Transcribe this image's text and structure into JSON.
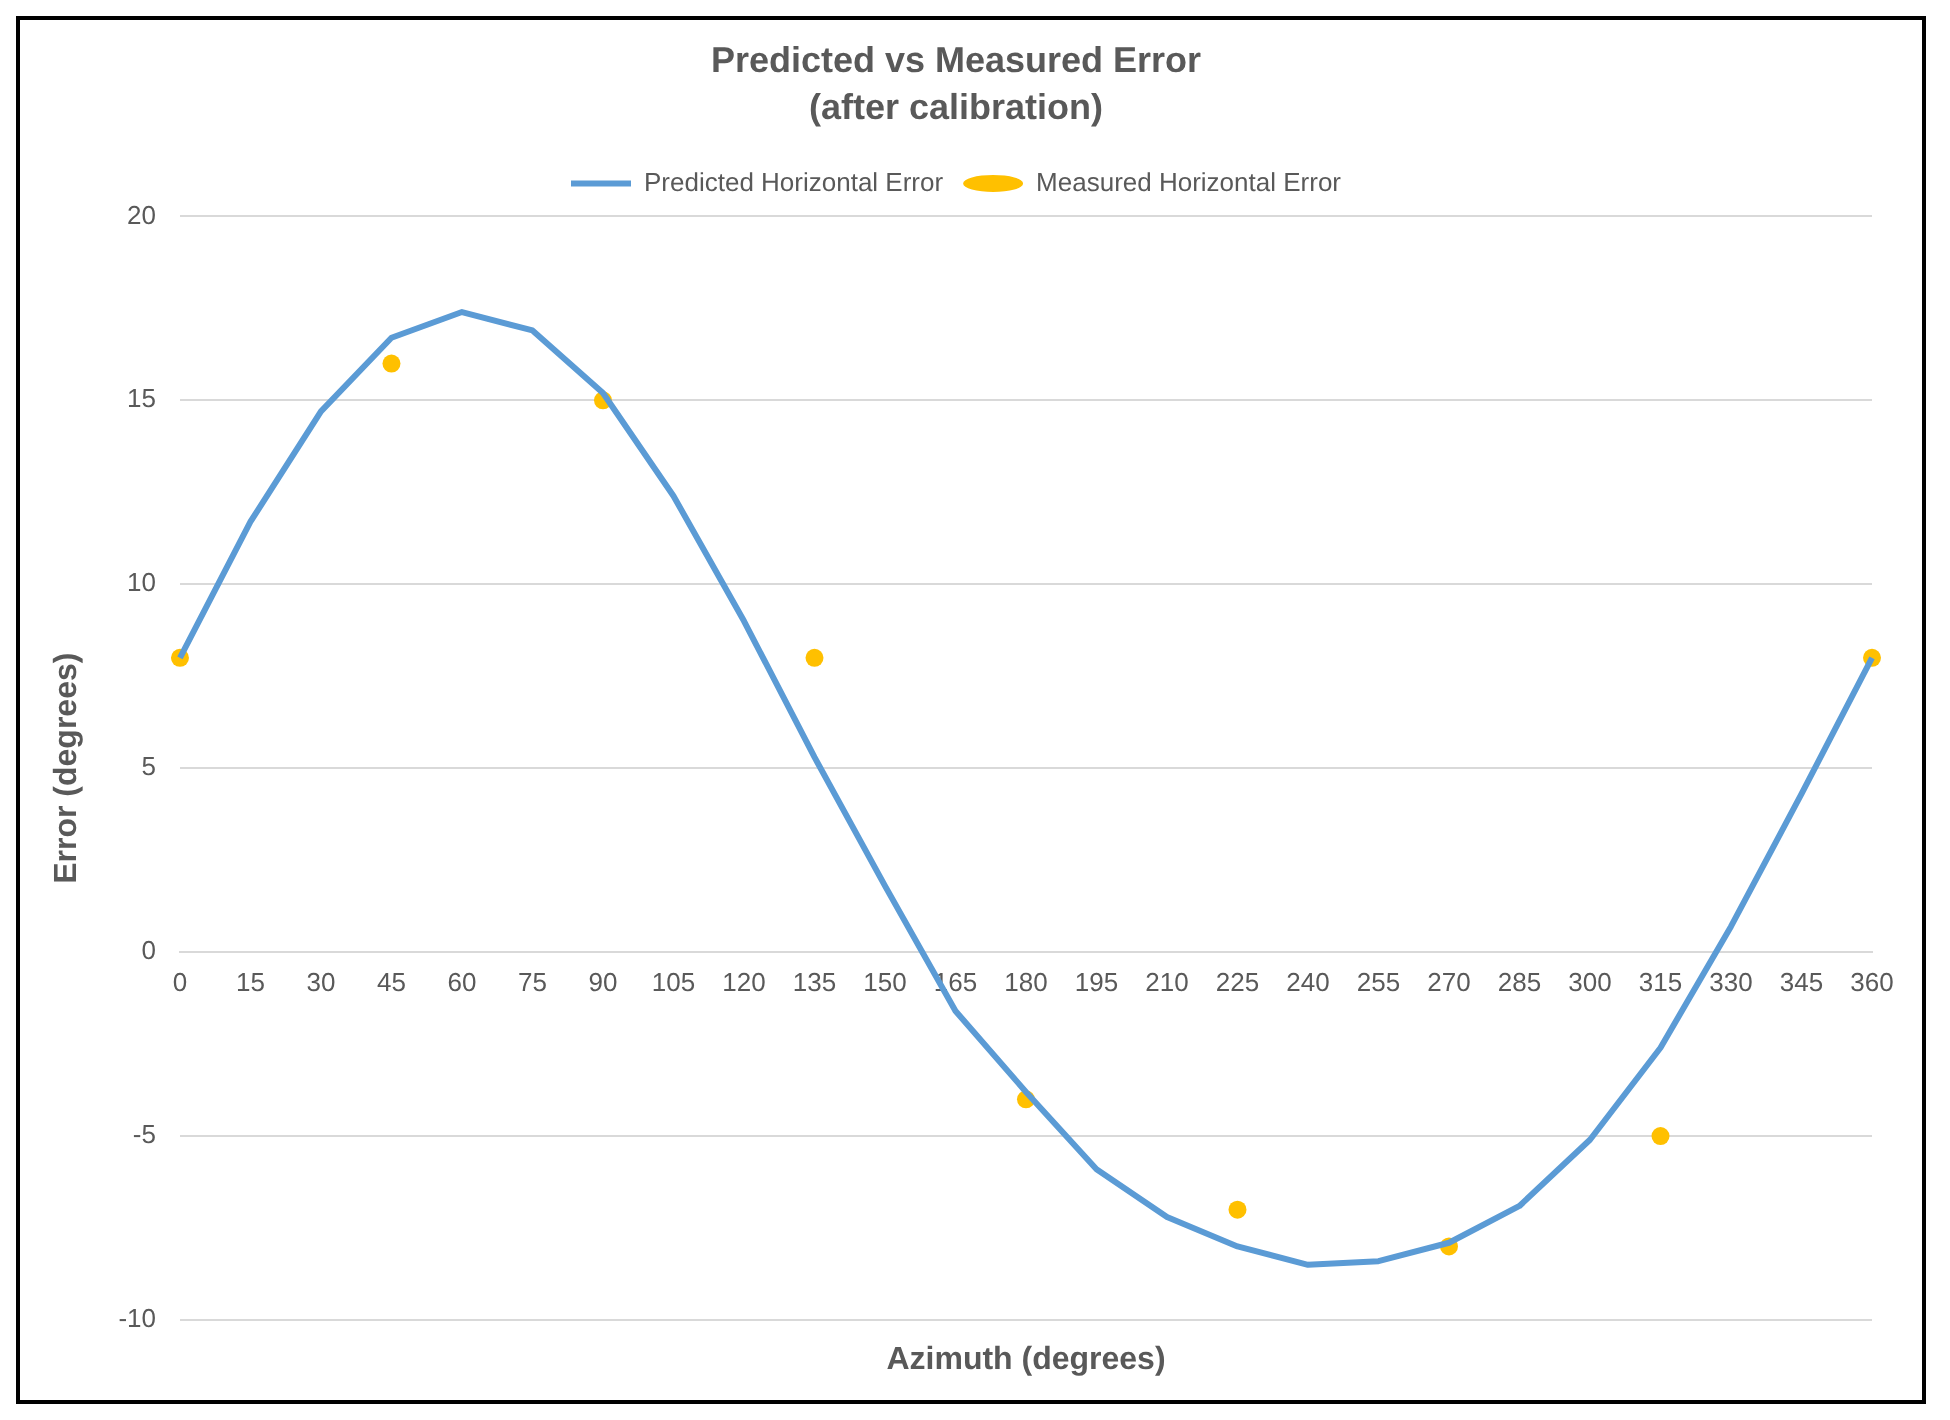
{
  "chart_data": {
    "type": "line",
    "title": "Predicted vs Measured Error",
    "subtitle": "(after calibration)",
    "xlabel": "Azimuth (degrees)",
    "ylabel": "Error (degrees)",
    "categories": [
      "0",
      "15",
      "30",
      "45",
      "60",
      "75",
      "90",
      "105",
      "120",
      "135",
      "150",
      "165",
      "180",
      "195",
      "210",
      "225",
      "240",
      "255",
      "270",
      "285",
      "300",
      "315",
      "330",
      "345",
      "360"
    ],
    "series": [
      {
        "name": "Predicted Horizontal Error",
        "type": "line",
        "color": "#5b9bd5",
        "marker": "none",
        "values": [
          8.0,
          11.7,
          14.7,
          16.7,
          17.4,
          16.9,
          15.2,
          12.4,
          9.0,
          5.3,
          1.8,
          -1.6,
          -3.8,
          -5.9,
          -7.2,
          -8.0,
          -8.5,
          -8.4,
          -7.9,
          -6.9,
          -5.1,
          -2.6,
          0.7,
          4.3,
          8.0
        ]
      },
      {
        "name": "Measured Horizontal Error",
        "type": "scatter",
        "color": "#ffc000",
        "marker": "circle",
        "values": [
          8,
          null,
          null,
          16,
          null,
          null,
          15,
          null,
          null,
          8,
          null,
          null,
          -4,
          null,
          null,
          -7,
          null,
          null,
          -8,
          null,
          null,
          -5,
          null,
          null,
          8
        ]
      }
    ],
    "ylim": [
      -10,
      20
    ],
    "yticks": [
      -10,
      -5,
      0,
      5,
      10,
      15,
      20
    ],
    "grid": "y",
    "legend": "top"
  }
}
